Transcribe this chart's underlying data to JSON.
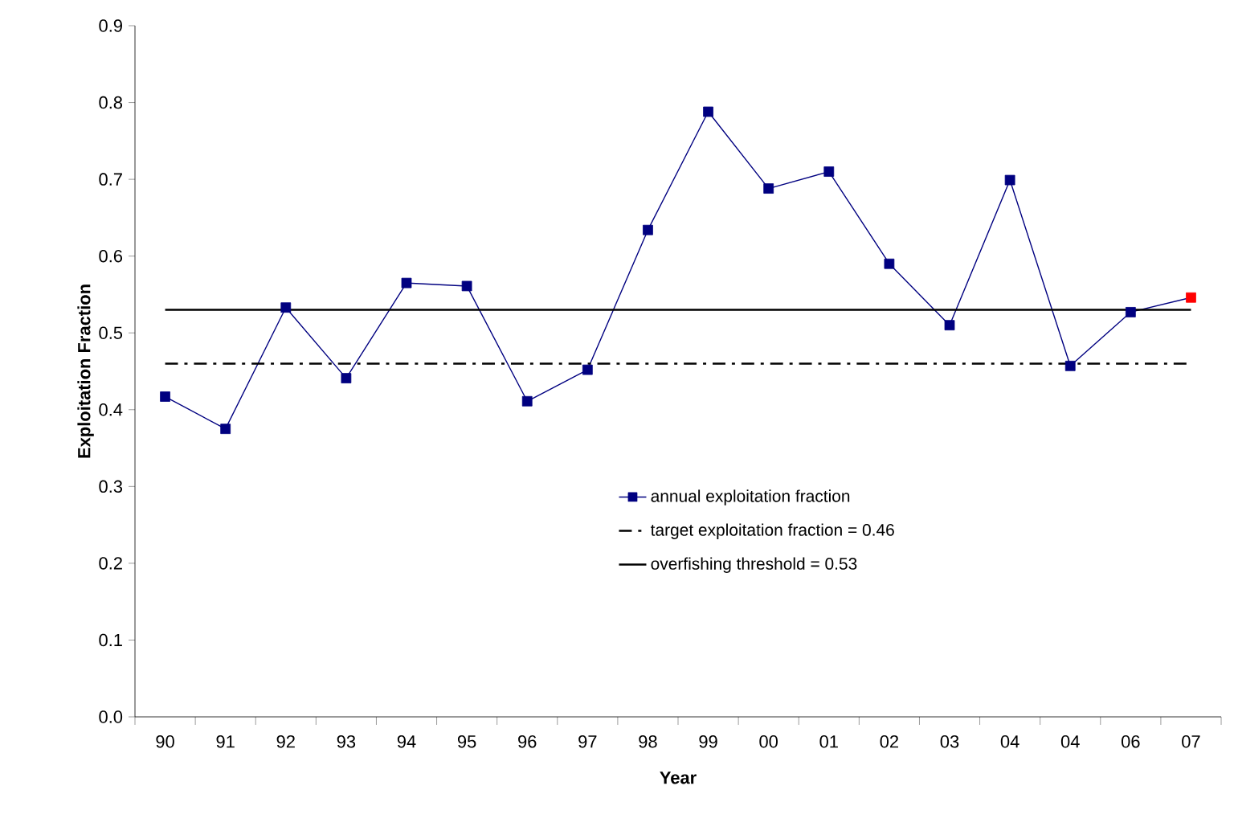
{
  "chart_data": {
    "type": "line",
    "xlabel": "Year",
    "ylabel": "Exploitation Fraction",
    "categories": [
      "90",
      "91",
      "92",
      "93",
      "94",
      "95",
      "96",
      "97",
      "98",
      "99",
      "00",
      "01",
      "02",
      "03",
      "04",
      "04",
      "06",
      "07"
    ],
    "series": [
      {
        "name": "annual exploitation fraction",
        "color": "#000080",
        "colors": [
          "#000080",
          "#000080",
          "#000080",
          "#000080",
          "#000080",
          "#000080",
          "#000080",
          "#000080",
          "#000080",
          "#000080",
          "#000080",
          "#000080",
          "#000080",
          "#000080",
          "#000080",
          "#000080",
          "#000080",
          "#ff0000"
        ],
        "values": [
          0.417,
          0.375,
          0.533,
          0.441,
          0.565,
          0.561,
          0.411,
          0.452,
          0.634,
          0.788,
          0.688,
          0.71,
          0.59,
          0.51,
          0.699,
          0.457,
          0.527,
          0.546
        ]
      }
    ],
    "ylim": [
      0,
      0.9
    ],
    "yticks": [
      {
        "value": 0,
        "label": "0.0"
      },
      0.1,
      0.2,
      0.3,
      0.4,
      0.5,
      0.6,
      0.7,
      0.8,
      0.9
    ],
    "ref_lines": [
      {
        "axis": "y",
        "value": 0.46,
        "label": "target exploitation fraction = 0.46",
        "color": "#000000",
        "line_style": "dashdot"
      },
      {
        "axis": "y",
        "value": 0.53,
        "label": "overfishing threshold = 0.53",
        "color": "#000000",
        "line_style": "solid"
      }
    ],
    "marker": "square",
    "line_style": "solid",
    "legend": "bottom",
    "grid": false
  }
}
